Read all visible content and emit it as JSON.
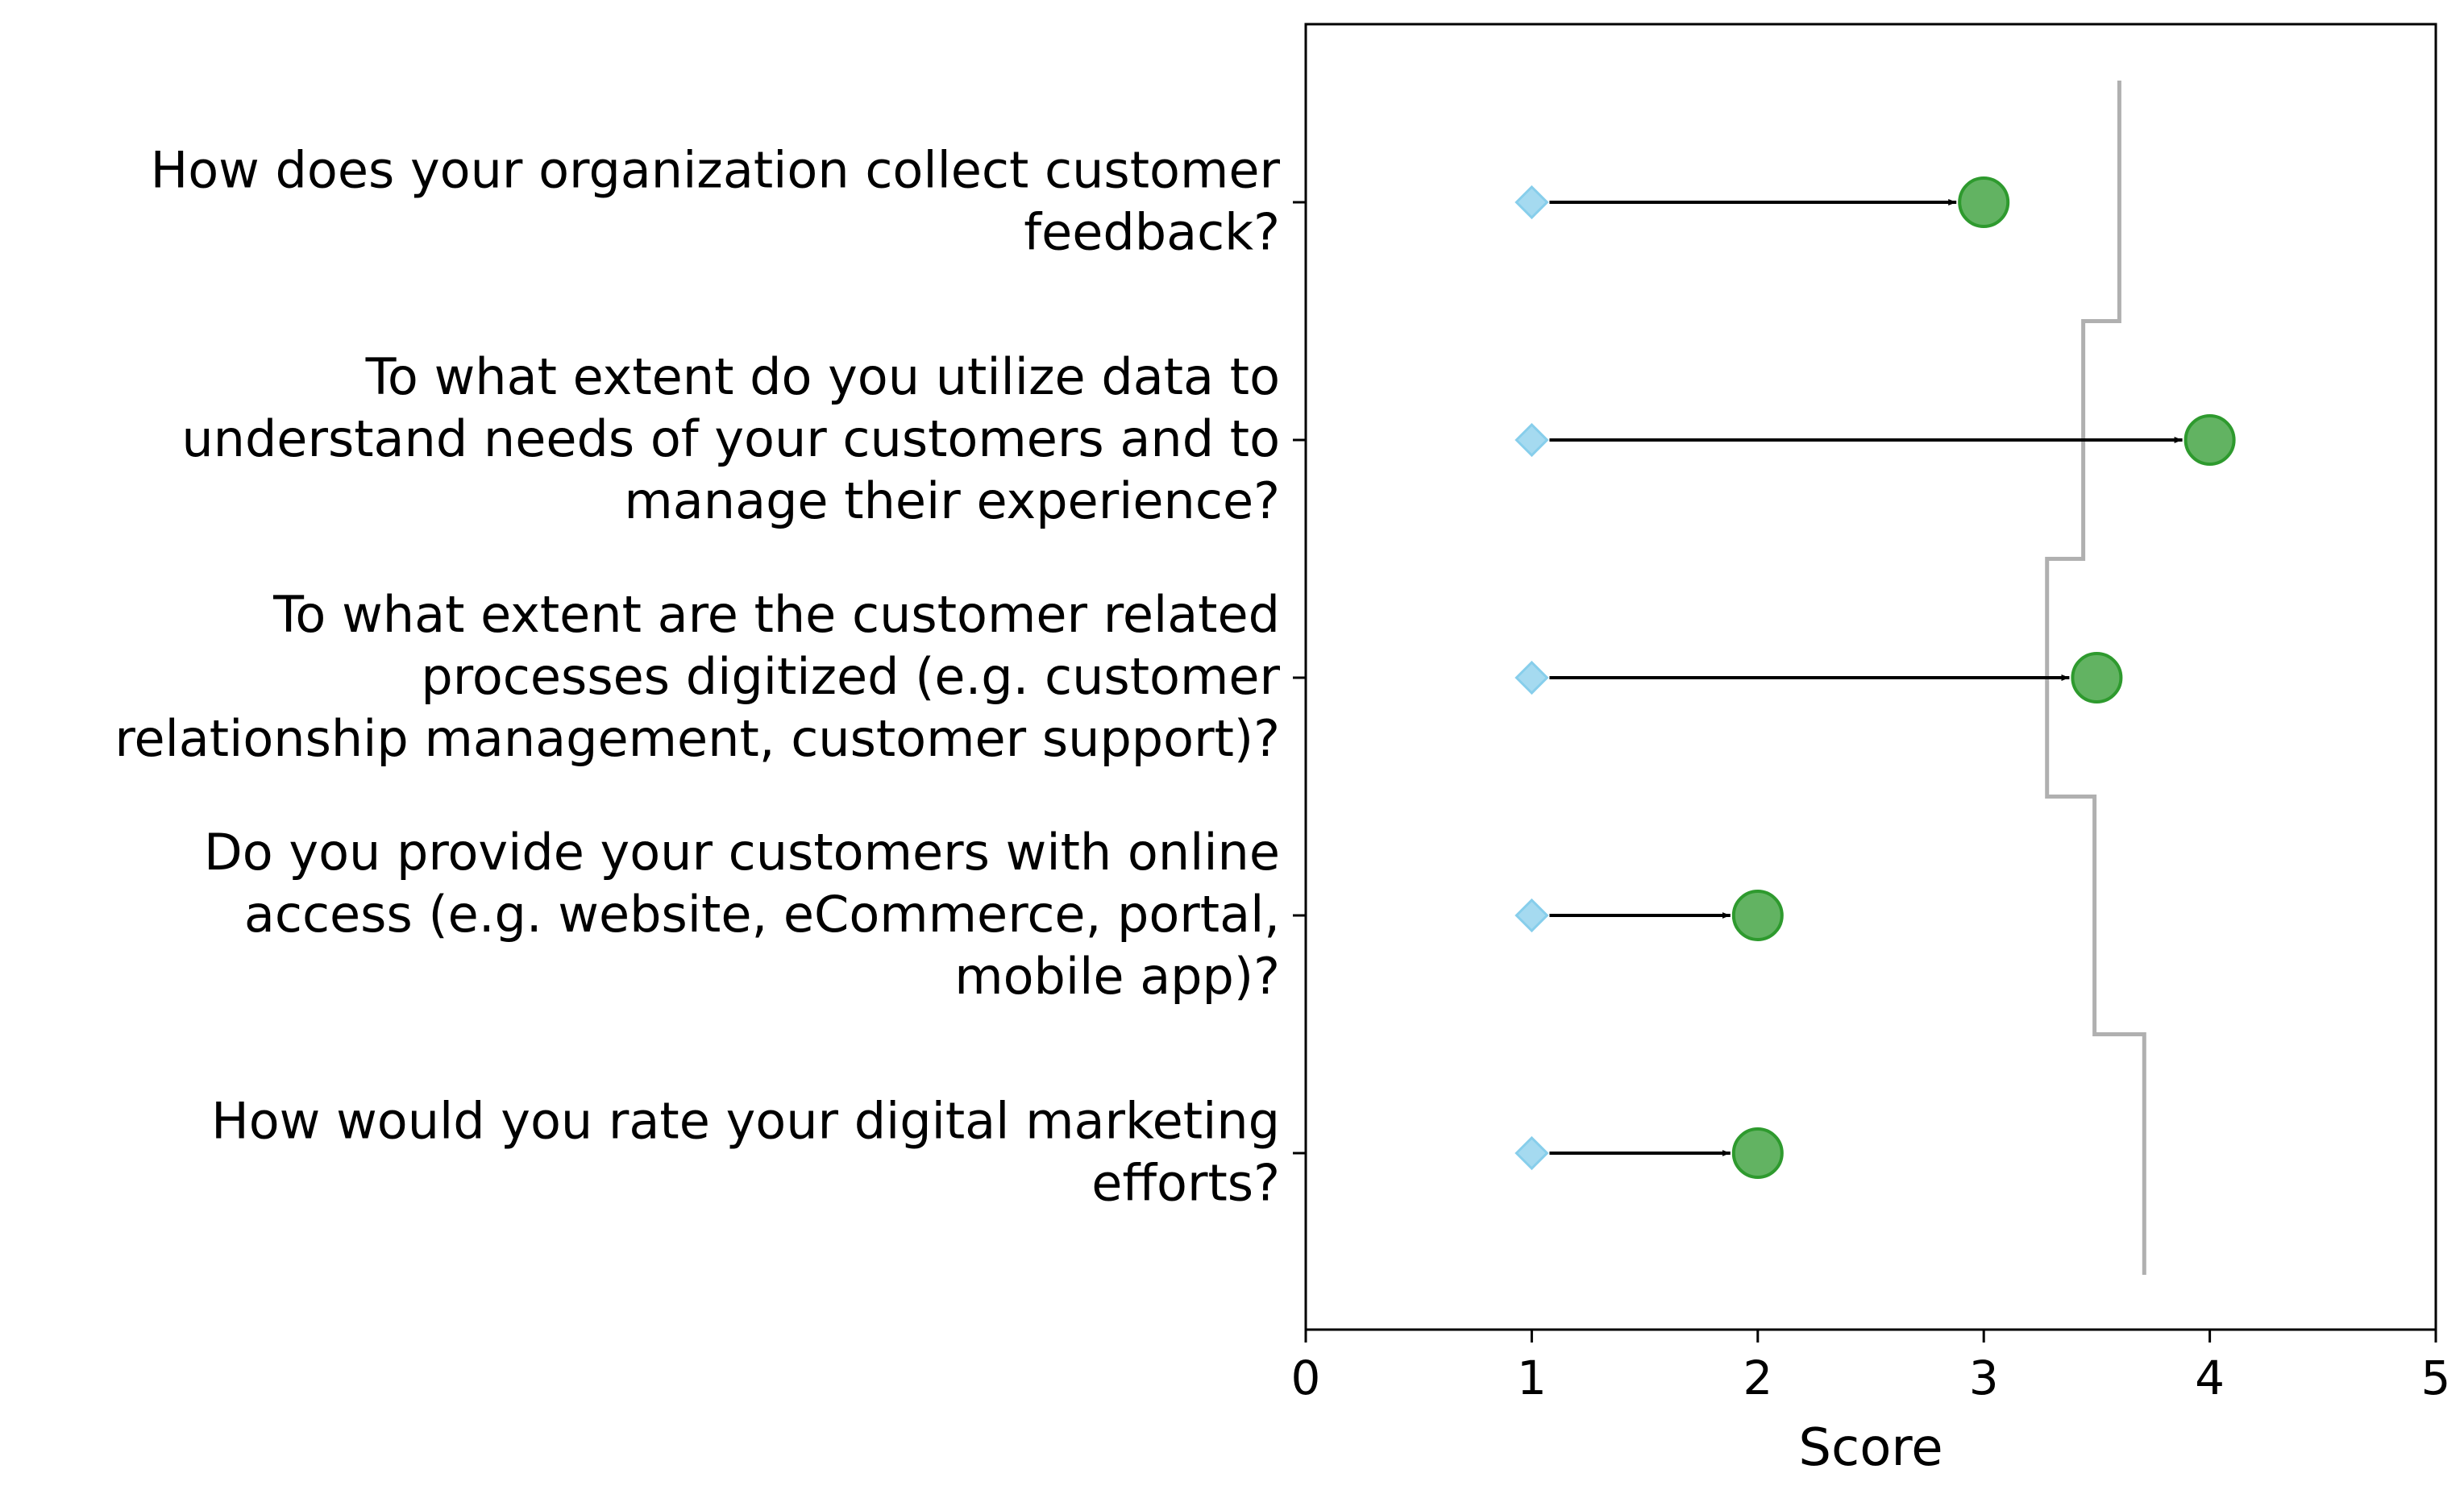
{
  "chart_data": {
    "type": "dumbbell",
    "xlabel": "Score",
    "xlim": [
      0,
      5
    ],
    "xticks": [
      "0",
      "1",
      "2",
      "3",
      "4",
      "5"
    ],
    "categories": [
      [
        "How does your organization collect customer",
        "feedback?"
      ],
      [
        "To what extent do you utilize data to",
        "understand needs of your customers and to",
        "manage their experience?"
      ],
      [
        "To what extent are the customer related",
        "processes digitized (e.g. customer",
        "relationship management, customer support)?"
      ],
      [
        "Do you provide your customers with online",
        "access (e.g. website, eCommerce, portal,",
        "mobile app)?"
      ],
      [
        "How would you rate your digital marketing",
        "efforts?"
      ]
    ],
    "start_values": [
      1,
      1,
      1,
      1,
      1
    ],
    "end_values": [
      3,
      4,
      3.5,
      2,
      2
    ],
    "benchmark_values": [
      3.6,
      3.44,
      3.28,
      3.49,
      3.71
    ],
    "colors": {
      "start_marker": "#87ceeb",
      "end_marker": "#2e9a2e",
      "arrow": "#000000",
      "benchmark_line": "#b0b0b0"
    },
    "legend": "none",
    "grid": false
  }
}
